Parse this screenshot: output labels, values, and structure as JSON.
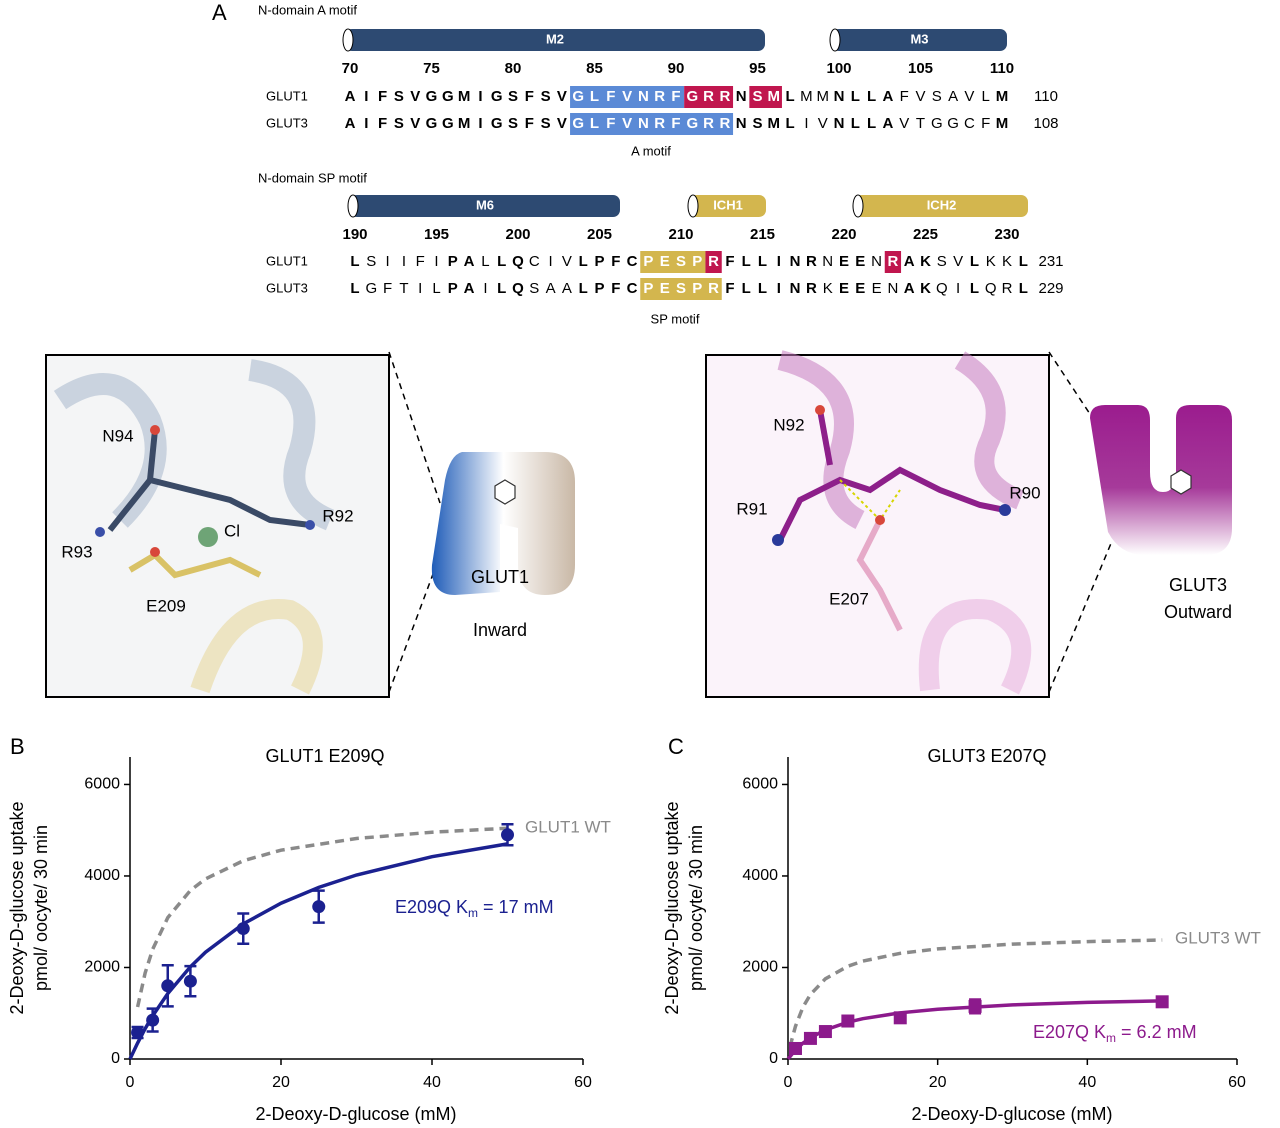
{
  "panel_a": {
    "label": "A",
    "blocks": [
      {
        "title": "N-domain A motif",
        "helices": [
          {
            "name": "M2",
            "color": "#2d4a72"
          },
          {
            "name": "M3",
            "color": "#2d4a72"
          }
        ],
        "numbers": [
          70,
          75,
          80,
          85,
          90,
          95,
          100,
          105,
          110
        ],
        "rows": [
          {
            "name": "GLUT1",
            "end": 110,
            "segments": [
              {
                "text": "AIFSVGGMIGSFSV",
                "bold": true
              },
              {
                "text": "GLFVNRF",
                "bold": true,
                "highlight": "#5b8ad6"
              },
              {
                "text": "GRR",
                "bold": true,
                "highlight": "#c0164e"
              },
              {
                "text": "N",
                "bold": true
              },
              {
                "text": "SM",
                "bold": true,
                "highlight": "#c0164e"
              },
              {
                "text": "L",
                "bold": true
              },
              {
                "text": "MM",
                "bold": false
              },
              {
                "text": "NLLA",
                "bold": true
              },
              {
                "text": "FVSAVL",
                "bold": false
              },
              {
                "text": "M",
                "bold": true
              }
            ]
          },
          {
            "name": "GLUT3",
            "end": 108,
            "segments": [
              {
                "text": "AIFSVGGMIGSFSV",
                "bold": true
              },
              {
                "text": "GLFVNRFGRR",
                "bold": true,
                "highlight": "#5b8ad6"
              },
              {
                "text": "NSML",
                "bold": true
              },
              {
                "text": "IV",
                "bold": false
              },
              {
                "text": "NLLA",
                "bold": true
              },
              {
                "text": "VTGGCF",
                "bold": false
              },
              {
                "text": "M",
                "bold": true
              }
            ]
          }
        ],
        "motif_label": "A motif"
      },
      {
        "title": "N-domain SP motif",
        "helices": [
          {
            "name": "M6",
            "color": "#2d4a72"
          },
          {
            "name": "ICH1",
            "color": "#d3b64e"
          },
          {
            "name": "ICH2",
            "color": "#d3b64e"
          }
        ],
        "numbers": [
          190,
          195,
          200,
          205,
          210,
          215,
          220,
          225,
          230
        ],
        "rows": [
          {
            "name": "GLUT1",
            "end": 231,
            "segments": [
              {
                "text": "L",
                "bold": true
              },
              {
                "text": "SIIFI",
                "bold": false
              },
              {
                "text": "PA",
                "bold": true
              },
              {
                "text": "L",
                "bold": false
              },
              {
                "text": "LQ",
                "bold": true
              },
              {
                "text": "CIV",
                "bold": false
              },
              {
                "text": "LPFC",
                "bold": true
              },
              {
                "text": "PESP",
                "bold": true,
                "highlight": "#d3b64e"
              },
              {
                "text": "R",
                "bold": true,
                "highlight": "#c0164e"
              },
              {
                "text": "FLLINR",
                "bold": true
              },
              {
                "text": "N",
                "bold": false
              },
              {
                "text": "EE",
                "bold": true
              },
              {
                "text": "N",
                "bold": false
              },
              {
                "text": "R",
                "bold": true,
                "highlight": "#c0164e"
              },
              {
                "text": "AK",
                "bold": true
              },
              {
                "text": "SV",
                "bold": false
              },
              {
                "text": "L",
                "bold": true
              },
              {
                "text": "KK",
                "bold": false
              },
              {
                "text": "L",
                "bold": true
              }
            ]
          },
          {
            "name": "GLUT3",
            "end": 229,
            "segments": [
              {
                "text": "L",
                "bold": true
              },
              {
                "text": "GFTIL",
                "bold": false
              },
              {
                "text": "PA",
                "bold": true
              },
              {
                "text": "I",
                "bold": false
              },
              {
                "text": "LQ",
                "bold": true
              },
              {
                "text": "SAA",
                "bold": false
              },
              {
                "text": "LPFC",
                "bold": true
              },
              {
                "text": "PESPR",
                "bold": true,
                "highlight": "#d3b64e"
              },
              {
                "text": "FLLINR",
                "bold": true
              },
              {
                "text": "K",
                "bold": false
              },
              {
                "text": "EE",
                "bold": true
              },
              {
                "text": "EN",
                "bold": false
              },
              {
                "text": "AK",
                "bold": true
              },
              {
                "text": "QI",
                "bold": false
              },
              {
                "text": "L",
                "bold": true
              },
              {
                "text": "QR",
                "bold": false
              },
              {
                "text": "L",
                "bold": true
              }
            ]
          }
        ],
        "motif_label": "SP motif"
      }
    ]
  },
  "structures": [
    {
      "labels": [
        "N94",
        "Cl",
        "R92",
        "R93",
        "E209"
      ],
      "model": [
        "GLUT1",
        "Inward"
      ]
    },
    {
      "labels": [
        "N92",
        "R91",
        "R90",
        "E207"
      ],
      "model": [
        "GLUT3",
        "Outward"
      ]
    }
  ],
  "chart_data": [
    {
      "type": "line",
      "panel": "B",
      "title": "GLUT1 E209Q",
      "x_label": "2-Deoxy-D-glucose (mM)",
      "y_label": [
        "2-Deoxy-D-glucose uptake",
        "pmol/ oocyte/ 30 min"
      ],
      "xlim": [
        0,
        60
      ],
      "xticks": [
        0,
        20,
        40,
        60
      ],
      "ylim": [
        0,
        6600
      ],
      "yticks": [
        0,
        2000,
        4000,
        6000
      ],
      "series": [
        {
          "name": "GLUT1 WT",
          "type": "line",
          "dashed": true,
          "color": "#8a8a8a",
          "x": [
            1,
            2,
            3,
            5,
            8,
            10,
            15,
            20,
            30,
            40,
            50
          ],
          "values": [
            1136,
            1877,
            2400,
            3090,
            3684,
            3937,
            4333,
            4563,
            4818,
            4956,
            5044
          ]
        },
        {
          "type": "line",
          "dashed": false,
          "color": "#1b2190",
          "x": [
            0,
            1,
            2,
            3,
            5,
            8,
            10,
            15,
            20,
            25,
            30,
            40,
            50
          ],
          "values": [
            0,
            350,
            663,
            945,
            1432,
            2016,
            2333,
            2953,
            3405,
            3750,
            4021,
            4421,
            4701
          ]
        },
        {
          "type": "scatter",
          "marker": "circle",
          "color": "#1b2190",
          "x": [
            1,
            3,
            5,
            8,
            15,
            25,
            50
          ],
          "values": [
            580,
            850,
            1600,
            1700,
            2850,
            3330,
            4900
          ],
          "errors": [
            120,
            250,
            450,
            330,
            330,
            350,
            230
          ]
        }
      ],
      "annotations": [
        {
          "text": "E209Q K",
          "sub": "m",
          "tail": "= 17 mM",
          "color": "#1b2190"
        }
      ]
    },
    {
      "type": "line",
      "panel": "C",
      "title": "GLUT3 E207Q",
      "x_label": "2-Deoxy-D-glucose (mM)",
      "y_label": [
        "2-Deoxy-D-glucose uptake",
        "pmol/ oocyte/ 30 min"
      ],
      "xlim": [
        0,
        60
      ],
      "xticks": [
        0,
        20,
        40,
        60
      ],
      "ylim": [
        0,
        6600
      ],
      "yticks": [
        0,
        2000,
        4000,
        6000
      ],
      "series": [
        {
          "name": "GLUT3 WT",
          "type": "line",
          "dashed": true,
          "color": "#8a8a8a",
          "x": [
            0.3,
            0.5,
            1,
            2,
            3,
            5,
            8,
            10,
            15,
            20,
            30,
            40,
            50
          ],
          "values": [
            263,
            411,
            716,
            1136,
            1412,
            1752,
            2028,
            2140,
            2311,
            2406,
            2510,
            2566,
            2601
          ]
        },
        {
          "type": "line",
          "dashed": false,
          "color": "#8c1a8c",
          "x": [
            0,
            1,
            2,
            3,
            5,
            8,
            10,
            15,
            20,
            30,
            40,
            50
          ],
          "values": [
            0,
            199,
            348,
            465,
            637,
            804,
            881,
            1009,
            1089,
            1182,
            1236,
            1270
          ]
        },
        {
          "type": "scatter",
          "marker": "square",
          "color": "#8c1a8c",
          "x": [
            1,
            3,
            5,
            8,
            15,
            25,
            50
          ],
          "values": [
            230,
            450,
            600,
            830,
            900,
            1150,
            1250
          ],
          "errors": [
            60,
            60,
            70,
            110,
            70,
            150,
            100
          ]
        }
      ],
      "annotations": [
        {
          "text": "E207Q K",
          "sub": "m",
          "tail": "= 6.2 mM",
          "color": "#8c1a8c"
        }
      ]
    }
  ]
}
